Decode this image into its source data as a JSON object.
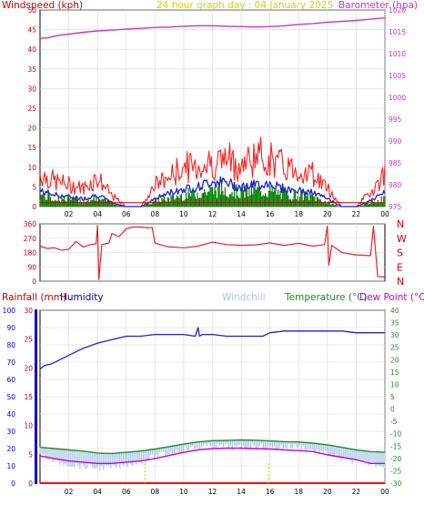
{
  "colors": {
    "windspeed": "#cc0000",
    "gust": "#ff2020",
    "avgwind": "#1e22cc",
    "windgreen": "#008000",
    "barometer": "#cc33cc",
    "title": "#d4d400",
    "direction": "#ee2020",
    "compass": "#cc0000",
    "rainfall_label": "#cc0000",
    "rain": "#ff0000",
    "humidity": "#00008b",
    "humidity_line": "#1e22cc",
    "windchill": "#a9c8e8",
    "temperature": "#228b22",
    "dewpoint": "#cc00cc",
    "axis_blue": "#0000cc"
  },
  "icons": [
    "rain-gauge-bar-icon"
  ],
  "chart_data": [
    {
      "type": "line",
      "id": "wind-pressure",
      "title": "24 hour graph day : 04 January 2025",
      "ylabel_left": "Windspeed (kph)",
      "ylabel_right": "Barometer (hpa)",
      "x_ticks": [
        "02",
        "04",
        "06",
        "08",
        "10",
        "12",
        "14",
        "16",
        "18",
        "20",
        "22",
        "00"
      ],
      "xlim": [
        0,
        24
      ],
      "ylim_left": [
        0,
        50
      ],
      "ylim_right": [
        975,
        1020
      ],
      "y_ticks_left": [
        "0",
        "5",
        "10",
        "15",
        "20",
        "25",
        "30",
        "35",
        "40",
        "45",
        "50"
      ],
      "y_ticks_right": [
        "975",
        "980",
        "985",
        "990",
        "995",
        "1000",
        "1005",
        "1010",
        "1015",
        "1020"
      ],
      "grid": true,
      "series": [
        {
          "axis": "right",
          "x": [
            0,
            0.5,
            1,
            1.5,
            2,
            3,
            4,
            5,
            6,
            7,
            8,
            9,
            10,
            11,
            12,
            13,
            14,
            15,
            16,
            17,
            18,
            19,
            20,
            21,
            22,
            23,
            24
          ],
          "values": [
            1013.5,
            1013.6,
            1014,
            1014.3,
            1014.5,
            1014.9,
            1015.2,
            1015.4,
            1015.6,
            1015.8,
            1016.0,
            1016.1,
            1016.3,
            1016.4,
            1016.4,
            1016.3,
            1016.2,
            1016.1,
            1016.2,
            1016.4,
            1016.7,
            1016.9,
            1017.2,
            1017.4,
            1017.6,
            1017.9,
            1018.2
          ]
        },
        {
          "axis": "left",
          "x": [
            0,
            1,
            2,
            3,
            4,
            5,
            6,
            7,
            8,
            9,
            10,
            11,
            12,
            13,
            14,
            15,
            16,
            17,
            18,
            19,
            20,
            21,
            22,
            23,
            24
          ],
          "values": [
            9,
            7,
            6,
            5,
            8,
            3,
            0,
            0,
            6,
            8,
            11,
            11,
            12,
            13,
            11,
            14,
            13,
            11,
            10,
            9,
            5,
            0,
            0,
            4,
            9
          ]
        },
        {
          "axis": "left",
          "x": [
            0,
            1,
            2,
            3,
            4,
            5,
            6,
            7,
            8,
            9,
            10,
            11,
            12,
            13,
            14,
            15,
            16,
            17,
            18,
            19,
            20,
            21,
            22,
            23,
            24
          ],
          "values": [
            4,
            3,
            2.5,
            2,
            3,
            1,
            0,
            0,
            2,
            3.5,
            4.5,
            5,
            6.5,
            6,
            5,
            5.5,
            6,
            4.5,
            4,
            3.5,
            2,
            0,
            0,
            1.5,
            3.5
          ]
        },
        {
          "axis": "left",
          "x": [
            0,
            1,
            2,
            3,
            4,
            5,
            6,
            7,
            8,
            9,
            10,
            11,
            12,
            13,
            14,
            15,
            16,
            17,
            18,
            19,
            20,
            21,
            22,
            23,
            24
          ],
          "values": [
            3,
            2,
            2,
            1.5,
            2,
            1,
            0,
            0,
            1.5,
            2,
            3,
            3.5,
            4,
            4.5,
            3.5,
            4,
            4,
            3,
            3,
            2.5,
            1,
            0,
            0,
            1,
            2
          ]
        },
        {
          "axis": "left",
          "x": [
            0,
            1,
            2,
            3,
            4,
            5,
            6,
            7,
            8,
            9,
            10,
            11,
            12,
            13,
            14,
            15,
            16,
            17,
            18,
            19,
            20,
            21,
            22,
            23,
            24
          ],
          "values": [
            1,
            1,
            1,
            1,
            1,
            1,
            1,
            1,
            1,
            1,
            1,
            1,
            1,
            1,
            1,
            1,
            1,
            1,
            1,
            1,
            1,
            1,
            1,
            1,
            1
          ]
        }
      ]
    },
    {
      "type": "line",
      "id": "wind-direction",
      "x_ticks": [],
      "xlim": [
        0,
        24
      ],
      "ylim": [
        0,
        360
      ],
      "y_ticks": [
        "0",
        "90",
        "180",
        "270",
        "360"
      ],
      "compass_labels": [
        "N",
        "W",
        "S",
        "E",
        "N"
      ],
      "grid": true,
      "series": [
        {
          "x": [
            0,
            0.5,
            1,
            1.5,
            2,
            2.5,
            3,
            3.5,
            3.9,
            4.0,
            4.1,
            4.3,
            4.8,
            5.0,
            5.5,
            6.0,
            6.5,
            7.0,
            7.5,
            7.8,
            8.0,
            8.5,
            9,
            10,
            11,
            12,
            13,
            14,
            15,
            16,
            17,
            18,
            19,
            19.8,
            20.0,
            20.1,
            20.3,
            21,
            22,
            23.0,
            23.2,
            23.5,
            24
          ],
          "values": [
            220,
            205,
            210,
            195,
            200,
            250,
            215,
            230,
            235,
            350,
            10,
            230,
            240,
            300,
            280,
            330,
            340,
            340,
            335,
            338,
            240,
            225,
            215,
            210,
            220,
            245,
            230,
            225,
            228,
            240,
            225,
            238,
            220,
            230,
            345,
            100,
            225,
            180,
            165,
            160,
            345,
            30,
            25
          ]
        }
      ]
    },
    {
      "type": "line",
      "id": "temperature-humidity",
      "ylabel_left_1": "Rainfall (mm)",
      "ylabel_left_2": "Humidity",
      "ylabel_right_1": "Temperature (°C)",
      "ylabel_right_2": "Dew Point (°C)",
      "windchill_label": "Windchill",
      "x_ticks": [
        "02",
        "04",
        "06",
        "08",
        "10",
        "12",
        "14",
        "16",
        "18",
        "20",
        "22",
        "00"
      ],
      "xlim": [
        0,
        24
      ],
      "ylim_rain": [
        0,
        30
      ],
      "ylim_humidity": [
        0,
        100
      ],
      "ylim_temp": [
        -30,
        40
      ],
      "y_ticks_rain": [
        "0",
        "5",
        "10",
        "15",
        "20",
        "25",
        "30"
      ],
      "y_ticks_humidity": [
        "0",
        "10",
        "20",
        "30",
        "40",
        "50",
        "60",
        "70",
        "80",
        "90",
        "100"
      ],
      "y_ticks_temp": [
        "-30",
        "-25",
        "-20",
        "-15",
        "-10",
        "-5",
        "0",
        "5",
        "10",
        "15",
        "20",
        "25",
        "30",
        "35",
        "40"
      ],
      "grid": true,
      "series": [
        {
          "axis": "humidity",
          "x": [
            0,
            0.3,
            0.8,
            1.3,
            2,
            3,
            4,
            5,
            6,
            7,
            8,
            9,
            10,
            10.8,
            11.0,
            11.1,
            11.3,
            12,
            13,
            14,
            15,
            15.5,
            16,
            17,
            18,
            19,
            20,
            21,
            22,
            23,
            24
          ],
          "values": [
            66,
            68,
            69,
            71,
            74,
            78,
            81,
            83,
            85,
            85,
            86,
            86,
            86,
            85,
            90,
            85,
            86,
            86,
            85,
            85,
            85,
            85,
            87,
            88,
            88,
            88,
            88,
            88,
            87,
            87,
            87
          ]
        },
        {
          "axis": "temp",
          "x": [
            0,
            1,
            2,
            3,
            4,
            5,
            6,
            7,
            8,
            9,
            10,
            11,
            12,
            13,
            14,
            15,
            16,
            17,
            18,
            19,
            20,
            21,
            22,
            23,
            24
          ],
          "values": [
            -15.5,
            -16,
            -16.5,
            -17,
            -17.8,
            -18,
            -17.5,
            -17,
            -16.2,
            -15.2,
            -14.2,
            -13.3,
            -12.8,
            -12.7,
            -12.5,
            -12.6,
            -12.9,
            -13.2,
            -13.3,
            -13.8,
            -14.5,
            -15.5,
            -16.5,
            -17.2,
            -17.5
          ]
        },
        {
          "axis": "temp",
          "x": [
            0,
            1,
            2,
            3,
            4,
            5,
            6,
            7,
            8,
            9,
            10,
            11,
            12,
            13,
            14,
            15,
            16,
            17,
            18,
            19,
            20,
            21,
            22,
            23,
            24
          ],
          "values": [
            -19,
            -20,
            -21,
            -21.5,
            -22,
            -22,
            -21.5,
            -21,
            -20,
            -18.8,
            -17.5,
            -16.5,
            -16,
            -15.8,
            -15.8,
            -16,
            -16.2,
            -16.5,
            -16.8,
            -17.2,
            -18.5,
            -19.5,
            -20.5,
            -22,
            -22
          ]
        },
        {
          "axis": "temp",
          "x": [
            0,
            1,
            2,
            3,
            4,
            5,
            6,
            7,
            8,
            9,
            10,
            11,
            12,
            13,
            14,
            15,
            16,
            17,
            18,
            19,
            20,
            21,
            22,
            23,
            24
          ],
          "values": [
            -17,
            -20,
            -21,
            -22,
            -22.5,
            -22.5,
            -21,
            -20,
            -18,
            -16.5,
            -15,
            -14.5,
            -13.5,
            -14,
            -14.5,
            -13.5,
            -14.5,
            -14,
            -14,
            -15.5,
            -17,
            -19,
            -20,
            -21,
            -21.5
          ]
        },
        {
          "axis": "rain",
          "x": [
            0,
            24
          ],
          "values": [
            0,
            0
          ]
        }
      ]
    }
  ]
}
